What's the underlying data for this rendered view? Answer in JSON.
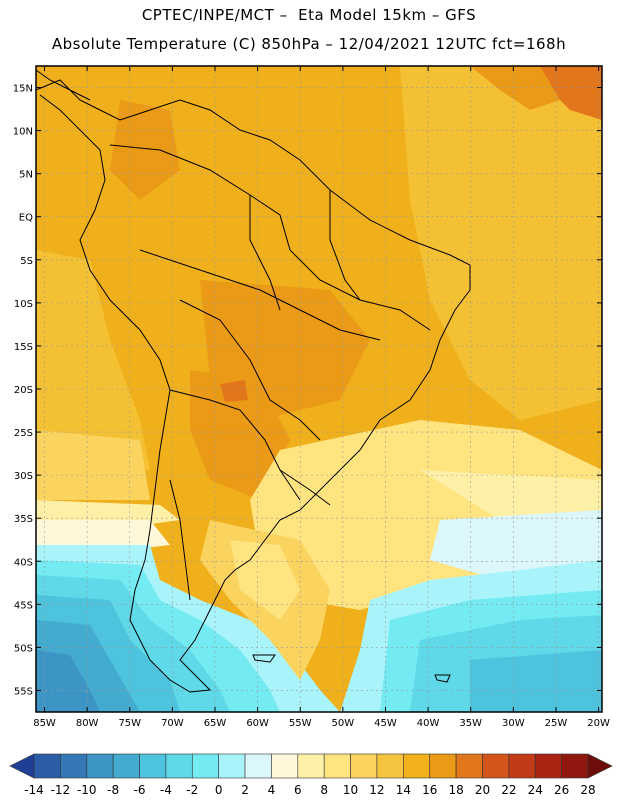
{
  "header": {
    "title_line1": "CPTEC/INPE/MCT –  Eta Model 15km – GFS",
    "title_line2": "Absolute Temperature (C) 850hPa – 12/04/2021 12UTC fct=168h"
  },
  "map": {
    "lat_labels": [
      "15N",
      "10N",
      "5N",
      "EQ",
      "5S",
      "10S",
      "15S",
      "20S",
      "25S",
      "30S",
      "35S",
      "40S",
      "45S",
      "50S",
      "55S"
    ],
    "lon_labels": [
      "85W",
      "80W",
      "75W",
      "70W",
      "65W",
      "60W",
      "55W",
      "50W",
      "45W",
      "40W",
      "35W",
      "30W",
      "25W",
      "20W"
    ]
  },
  "colorbar": {
    "labels": [
      "-14",
      "-12",
      "-10",
      "-8",
      "-6",
      "-4",
      "-2",
      "0",
      "2",
      "4",
      "6",
      "8",
      "10",
      "12",
      "14",
      "16",
      "18",
      "20",
      "22",
      "24",
      "26",
      "28"
    ],
    "colors": [
      "#1f3f95",
      "#2d5ca6",
      "#3479b6",
      "#3c95c4",
      "#43abd0",
      "#4ec3dd",
      "#5fd8e8",
      "#74eaf2",
      "#a9f4fa",
      "#dcf7fb",
      "#fff7d9",
      "#fff0a8",
      "#ffe480",
      "#fbd45f",
      "#f6c53f",
      "#f1b21c",
      "#ea9a16",
      "#e2761b",
      "#d3551c",
      "#c13b17",
      "#a92412",
      "#8f1710",
      "#6e0c0c"
    ]
  }
}
